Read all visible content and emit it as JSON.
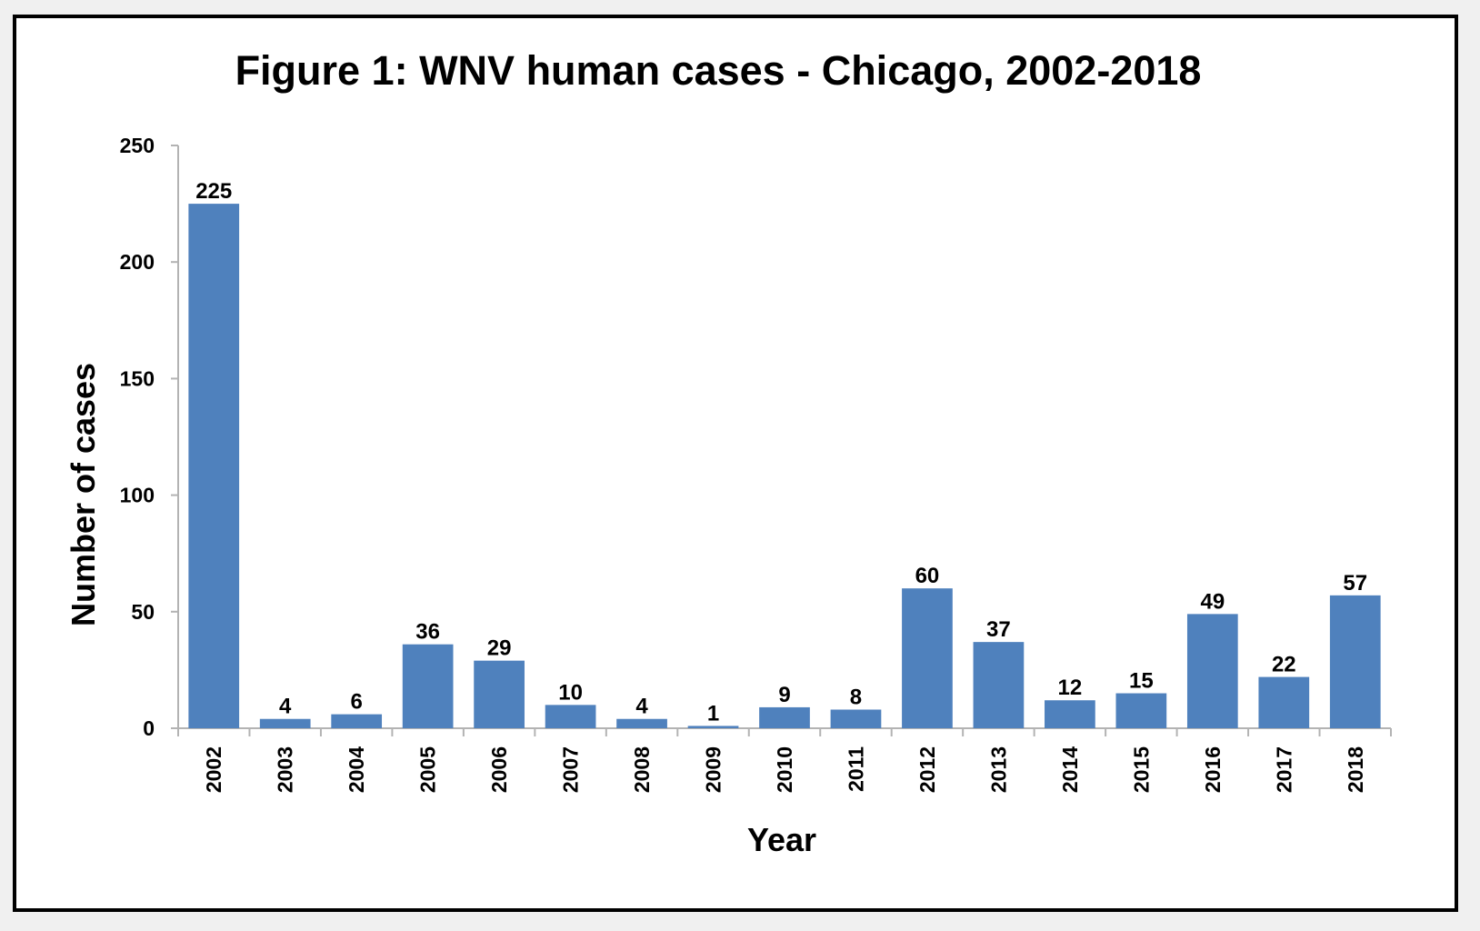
{
  "chart_data": {
    "type": "bar",
    "title": "Figure 1: WNV human cases - Chicago, 2002-2018",
    "xlabel": "Year",
    "ylabel": "Number of cases",
    "categories": [
      "2002",
      "2003",
      "2004",
      "2005",
      "2006",
      "2007",
      "2008",
      "2009",
      "2010",
      "2011",
      "2012",
      "2013",
      "2014",
      "2015",
      "2016",
      "2017",
      "2018"
    ],
    "values": [
      225,
      4,
      6,
      36,
      29,
      10,
      4,
      1,
      9,
      8,
      60,
      37,
      12,
      15,
      49,
      22,
      57
    ],
    "ylim": [
      0,
      250
    ],
    "yticks": [
      0,
      50,
      100,
      150,
      200,
      250
    ],
    "bar_color": "#4f81bd",
    "grid": false,
    "legend": "none",
    "data_labels": true
  }
}
